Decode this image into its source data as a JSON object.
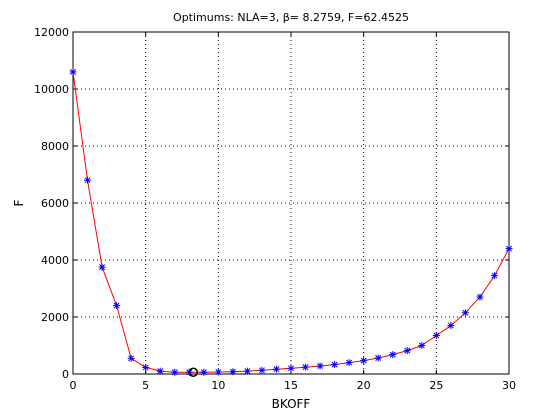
{
  "chart_data": {
    "type": "line",
    "title": "Optimums: NLA=3, β= 8.2759, F=62.4525",
    "xlabel": "BKOFF",
    "ylabel": "F",
    "xlim": [
      0,
      30
    ],
    "ylim": [
      0,
      12000
    ],
    "grid": true,
    "x_ticks": [
      0,
      5,
      10,
      15,
      20,
      25,
      30
    ],
    "y_ticks": [
      0,
      2000,
      4000,
      6000,
      8000,
      10000,
      12000
    ],
    "series": [
      {
        "line_color": "#ff0000",
        "marker": "asterisk",
        "marker_color": "#0000ff",
        "x": [
          0,
          1,
          2,
          3,
          4,
          5,
          6,
          7,
          8,
          9,
          10,
          11,
          12,
          13,
          14,
          15,
          16,
          17,
          18,
          19,
          20,
          21,
          22,
          23,
          24,
          25,
          26,
          27,
          28,
          29,
          30
        ],
        "y": [
          10600,
          6800,
          3750,
          2400,
          550,
          230,
          100,
          60,
          62,
          60,
          70,
          80,
          100,
          130,
          170,
          200,
          240,
          280,
          330,
          400,
          470,
          560,
          680,
          820,
          1000,
          1350,
          1700,
          2150,
          2700,
          3450,
          4400
        ]
      }
    ],
    "optimum": {
      "x": 8.2759,
      "y": 62.4525,
      "marker": "circle",
      "marker_color": "#000000"
    }
  }
}
